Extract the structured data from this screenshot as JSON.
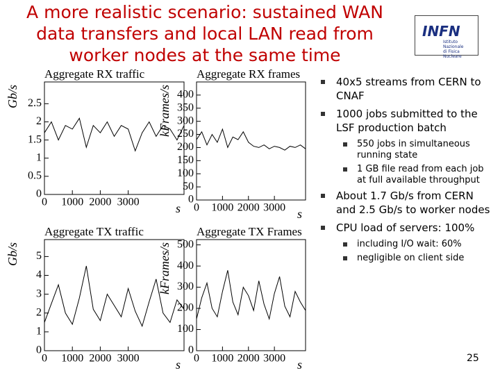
{
  "title_lines": [
    "A more realistic scenario: sustained WAN",
    "data transfers and local LAN read from",
    "worker nodes at the same time"
  ],
  "logo": {
    "name": "INFN",
    "caption_lines": [
      "Istituto Nazionale",
      "di Fisica Nucleare"
    ]
  },
  "chart_data": [
    {
      "type": "line",
      "title": "Aggregate RX traffic",
      "y_label": "Gb/s",
      "x_label": "s",
      "color": "#000000",
      "x": [
        0,
        250,
        500,
        750,
        1000,
        1250,
        1500,
        1750,
        2000,
        2250,
        2500,
        2750,
        3000,
        3250,
        3500,
        3750,
        4000,
        4250,
        4500,
        4750,
        5000
      ],
      "values": [
        1.7,
        2.0,
        1.5,
        1.9,
        1.8,
        2.1,
        1.3,
        1.9,
        1.7,
        2.0,
        1.6,
        1.9,
        1.8,
        1.2,
        1.7,
        2.0,
        1.6,
        1.9,
        1.8,
        1.5,
        1.9
      ],
      "xlim": [
        0,
        5000
      ],
      "xticks": [
        0,
        1000,
        2000,
        3000
      ],
      "ylim": [
        0,
        3.1
      ],
      "yticks": [
        0,
        0.5,
        1,
        1.5,
        2,
        2.5
      ]
    },
    {
      "type": "line",
      "title": "Aggregate RX frames",
      "y_label": "kFrames/s",
      "x_label": "s",
      "color": "#000000",
      "x": [
        0,
        200,
        400,
        600,
        800,
        1000,
        1200,
        1400,
        1600,
        1800,
        2000,
        2200,
        2400,
        2600,
        2800,
        3000,
        3200,
        3400,
        3600,
        3800,
        4000,
        4200
      ],
      "values": [
        230,
        260,
        210,
        250,
        220,
        270,
        200,
        240,
        230,
        260,
        220,
        205,
        200,
        210,
        195,
        205,
        200,
        190,
        205,
        200,
        210,
        195
      ],
      "xlim": [
        0,
        4200
      ],
      "xticks": [
        0,
        1000,
        2000,
        3000
      ],
      "ylim": [
        0,
        450
      ],
      "yticks": [
        0,
        50,
        100,
        150,
        200,
        250,
        300,
        350,
        400
      ]
    },
    {
      "type": "line",
      "title": "Aggregate TX traffic",
      "y_label": "Gb/s",
      "x_label": "s",
      "color": "#000000",
      "x": [
        0,
        250,
        500,
        750,
        1000,
        1250,
        1500,
        1750,
        2000,
        2250,
        2500,
        2750,
        3000,
        3250,
        3500,
        3750,
        4000,
        4250,
        4500,
        4750,
        5000
      ],
      "values": [
        1.5,
        2.5,
        3.5,
        2.0,
        1.4,
        2.8,
        4.5,
        2.2,
        1.6,
        3.0,
        2.4,
        1.8,
        3.3,
        2.1,
        1.3,
        2.6,
        3.8,
        2.0,
        1.5,
        2.7,
        2.2
      ],
      "xlim": [
        0,
        5000
      ],
      "xticks": [
        0,
        1000,
        2000,
        3000
      ],
      "ylim": [
        0,
        5.9
      ],
      "yticks": [
        0,
        1,
        2,
        3,
        4,
        5
      ]
    },
    {
      "type": "line",
      "title": "Aggregate TX Frames",
      "y_label": "kFrames/s",
      "x_label": "s",
      "color": "#000000",
      "x": [
        0,
        200,
        400,
        600,
        800,
        1000,
        1200,
        1400,
        1600,
        1800,
        2000,
        2200,
        2400,
        2600,
        2800,
        3000,
        3200,
        3400,
        3600,
        3800,
        4000,
        4200
      ],
      "values": [
        150,
        250,
        320,
        200,
        160,
        280,
        380,
        230,
        170,
        300,
        260,
        190,
        330,
        220,
        150,
        270,
        350,
        210,
        160,
        280,
        230,
        190
      ],
      "xlim": [
        0,
        4200
      ],
      "xticks": [
        0,
        1000,
        2000,
        3000
      ],
      "ylim": [
        0,
        525
      ],
      "yticks": [
        0,
        100,
        200,
        300,
        400,
        500
      ]
    }
  ],
  "bullets": [
    {
      "text": "40x5 streams from CERN to CNAF"
    },
    {
      "text": "1000 jobs submitted to the LSF production batch",
      "sub": [
        "550 jobs in simultaneous running state",
        "1 GB file read from each job at full available throughput"
      ]
    },
    {
      "text": "About 1.7 Gb/s from CERN and 2.5 Gb/s to worker nodes"
    },
    {
      "text": "CPU load of servers: 100%",
      "sub": [
        "including I/O wait: 60%",
        "negligible on client side"
      ]
    }
  ],
  "page_number": "25"
}
